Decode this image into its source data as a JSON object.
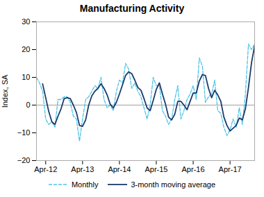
{
  "chart_data": {
    "type": "line",
    "title": "Manufacturing Activity",
    "ylabel": "Index, SA",
    "categories": [
      null,
      null,
      null,
      "Apr-12",
      null,
      null,
      null,
      null,
      null,
      null,
      null,
      null,
      null,
      null,
      null,
      "Apr-13",
      null,
      null,
      null,
      null,
      null,
      null,
      null,
      null,
      null,
      null,
      null,
      "Apr-14",
      null,
      null,
      null,
      null,
      null,
      null,
      null,
      null,
      null,
      null,
      null,
      "Apr-15",
      null,
      null,
      null,
      null,
      null,
      null,
      null,
      null,
      null,
      null,
      null,
      "Apr-16",
      null,
      null,
      null,
      null,
      null,
      null,
      null,
      null,
      null,
      null,
      null,
      "Apr-17",
      null,
      null,
      null,
      null,
      null,
      null,
      null,
      null
    ],
    "series": [
      {
        "name": "Monthly",
        "color": "#4dc3e8",
        "line_style": "dashed",
        "values": [
          10,
          8,
          5,
          -5,
          -7,
          -6,
          -8,
          2,
          2,
          3,
          3,
          1,
          -4,
          -5,
          -13,
          -5,
          2,
          3,
          5,
          7,
          6,
          10,
          2,
          -1,
          0,
          -2,
          5,
          9,
          8,
          15,
          13,
          6,
          8,
          5,
          3,
          -1,
          -5,
          0,
          10,
          7,
          7,
          -2,
          -4,
          -7,
          -5,
          2,
          7,
          -5,
          -2,
          2,
          4,
          7,
          2,
          17,
          14,
          1,
          3,
          4,
          9,
          -2,
          -3,
          -8,
          -11,
          -9,
          -5,
          -8,
          -1,
          -7,
          4,
          22,
          20,
          22
        ]
      },
      {
        "name": "3-month moving average",
        "color": "#1a3a6b",
        "line_style": "solid",
        "values": [
          null,
          null,
          7.666666666666667,
          2.6666666666666665,
          -2.3333333333333335,
          -6,
          -7,
          -4,
          -1.3333333333333333,
          2.3333333333333335,
          2.6666666666666665,
          2.3333333333333335,
          0,
          -2.6666666666666665,
          -7.333333333333333,
          -7.666666666666667,
          -5.333333333333333,
          0,
          3.3333333333333335,
          5,
          6,
          7.666666666666667,
          6,
          3.6666666666666665,
          0.3333333333333333,
          -1,
          1,
          4,
          7.333333333333333,
          10.666666666666666,
          12,
          11.333333333333334,
          9,
          6.333333333333333,
          5.333333333333333,
          2.3333333333333335,
          -1,
          -2,
          1.6666666666666667,
          5.666666666666667,
          8,
          4,
          0.3333333333333333,
          -4.333333333333333,
          -5.333333333333333,
          -3.3333333333333335,
          1.3333333333333333,
          1.3333333333333333,
          0,
          -1.6666666666666667,
          1.3333333333333333,
          4.333333333333333,
          4.333333333333333,
          8.666666666666666,
          11,
          10.666666666666666,
          6,
          2.6666666666666665,
          5.333333333333333,
          3.6666666666666665,
          1.3333333333333333,
          -4.333333333333333,
          -7.333333333333333,
          -9.333333333333334,
          -8.333333333333334,
          -7.333333333333333,
          -4.666666666666667,
          -5.333333333333333,
          -1.3333333333333333,
          6.333333333333333,
          15.333333333333334,
          21.333333333333332
        ]
      }
    ],
    "ylim": [
      -20,
      30
    ],
    "yticks": [
      -20,
      -10,
      0,
      10,
      20,
      30
    ],
    "grid": false,
    "legend": "bottom"
  }
}
